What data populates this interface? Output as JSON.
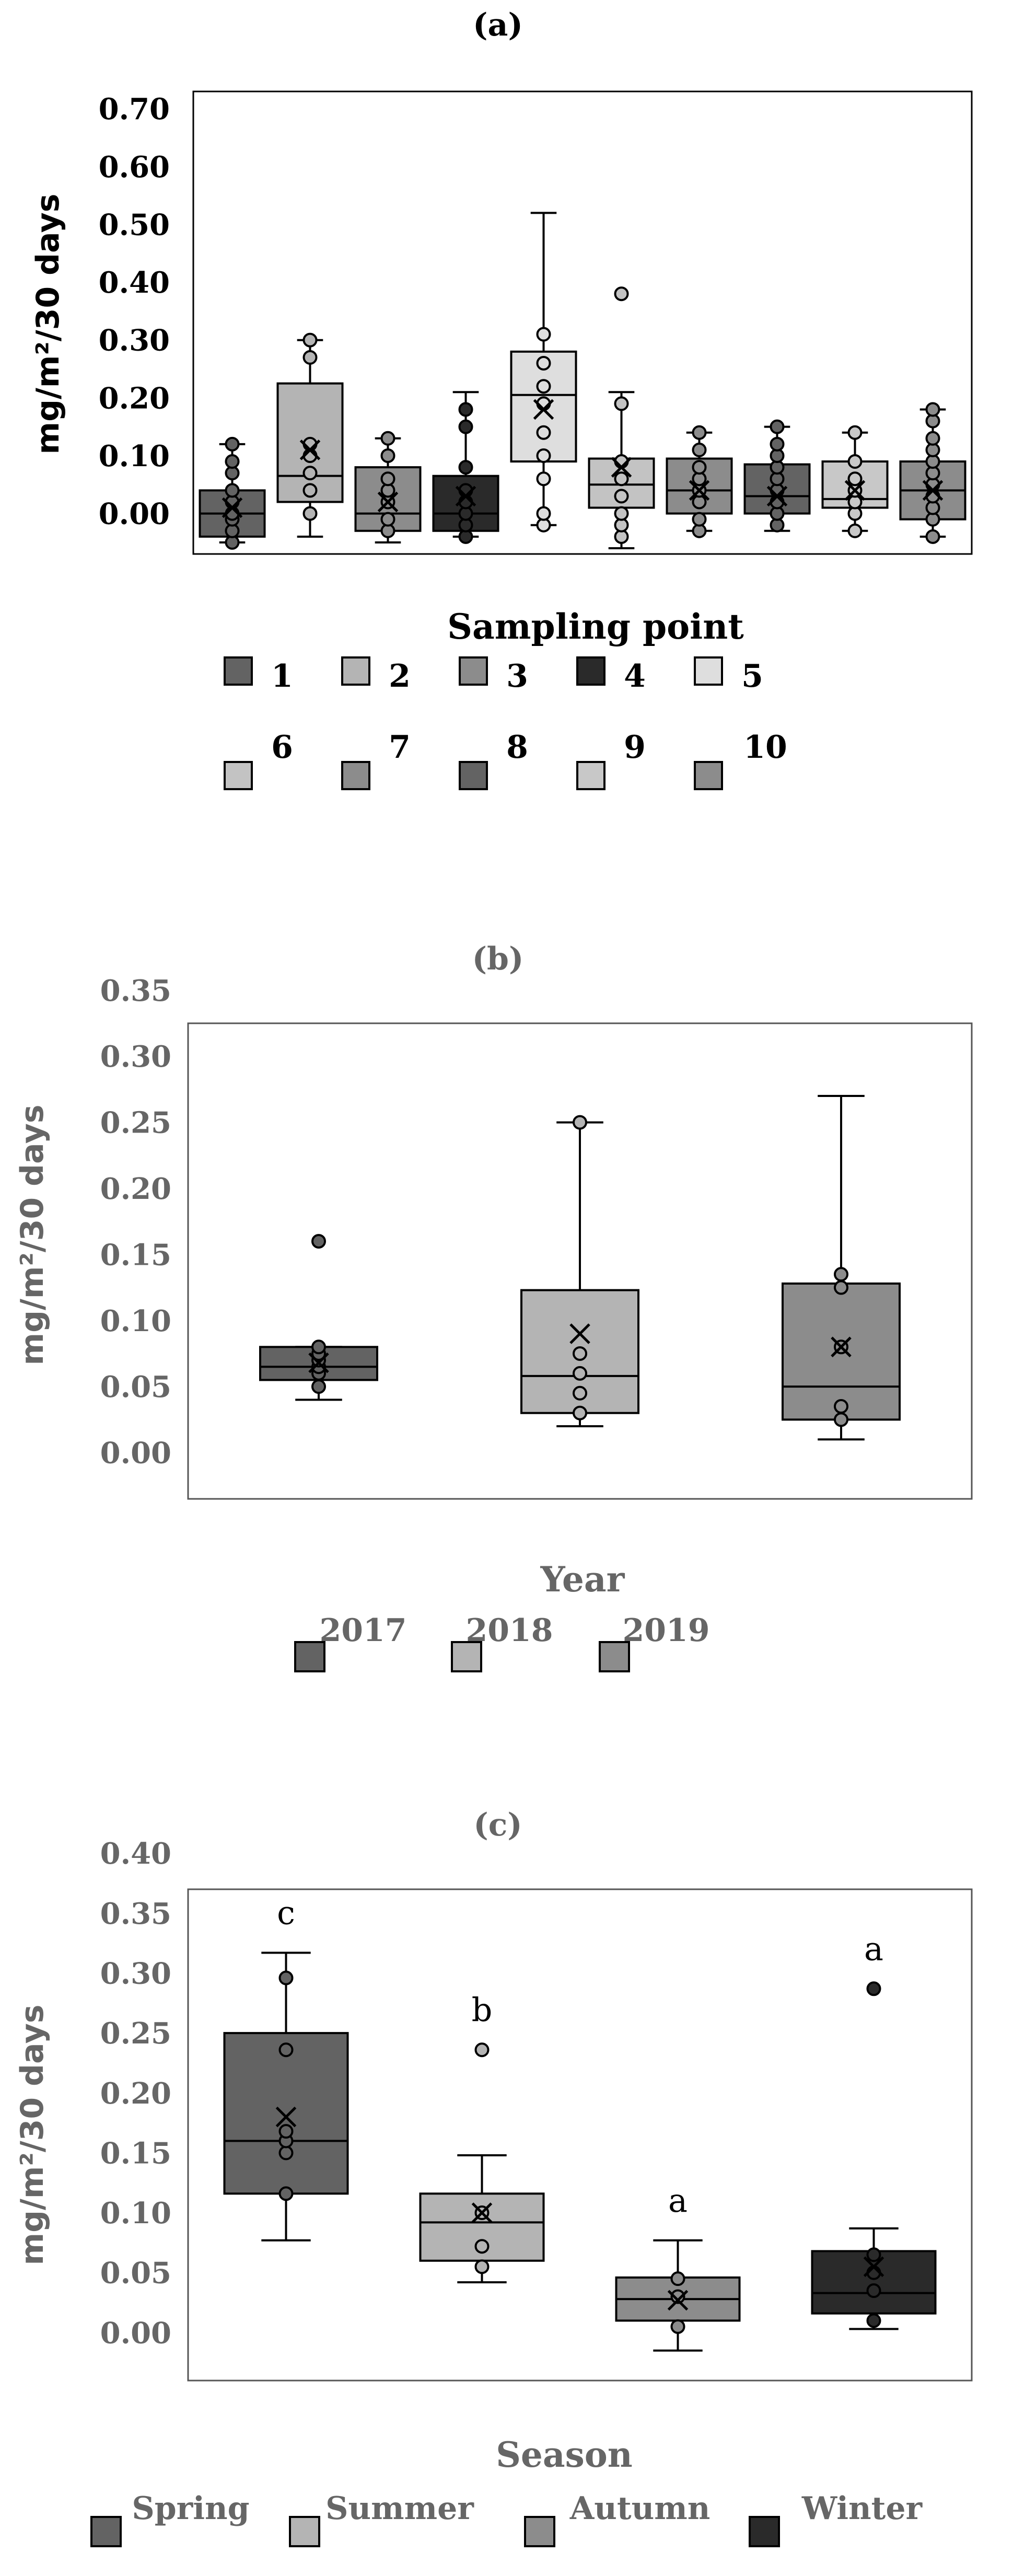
{
  "chart_data": [
    {
      "panel": "(a)",
      "type": "box",
      "ylabel": "mg/m²/30 days",
      "yticks": [
        "0.00",
        "0.10",
        "0.20",
        "0.30",
        "0.40",
        "0.50",
        "0.60",
        "0.70"
      ],
      "ylim": [
        -0.07,
        0.73
      ],
      "legend_title": "Sampling point",
      "colors": {
        "1": "#636363",
        "2": "#b4b4b4",
        "3": "#8c8c8c",
        "4": "#2a2a2a",
        "5": "#dedede",
        "6": "#c3c3c3",
        "7": "#8c8c8c",
        "8": "#636363",
        "9": "#c8c8c8",
        "10": "#8c8c8c"
      },
      "legend": [
        {
          "label": "1",
          "color": "#636363"
        },
        {
          "label": "2",
          "color": "#b4b4b4"
        },
        {
          "label": "3",
          "color": "#8c8c8c"
        },
        {
          "label": "4",
          "color": "#2a2a2a"
        },
        {
          "label": "5",
          "color": "#dedede"
        },
        {
          "label": "6",
          "color": "#c3c3c3"
        },
        {
          "label": "7",
          "color": "#8c8c8c"
        },
        {
          "label": "8",
          "color": "#636363"
        },
        {
          "label": "9",
          "color": "#c8c8c8"
        },
        {
          "label": "10",
          "color": "#8c8c8c"
        }
      ],
      "series": [
        {
          "name": "1",
          "min": -0.05,
          "q1": -0.04,
          "median": 0.0,
          "q3": 0.04,
          "max": 0.12,
          "mean": 0.01,
          "points": [
            -0.05,
            -0.03,
            -0.01,
            0.0,
            0.02,
            0.04,
            0.07,
            0.09,
            0.12
          ]
        },
        {
          "name": "2",
          "min": -0.04,
          "q1": 0.02,
          "median": 0.065,
          "q3": 0.225,
          "max": 0.3,
          "mean": 0.11,
          "points": [
            0.0,
            0.04,
            0.07,
            0.1,
            0.12,
            0.27,
            0.3
          ]
        },
        {
          "name": "3",
          "min": -0.05,
          "q1": -0.03,
          "median": 0.0,
          "q3": 0.08,
          "max": 0.13,
          "mean": 0.02,
          "points": [
            -0.03,
            -0.01,
            0.02,
            0.04,
            0.06,
            0.1,
            0.13
          ]
        },
        {
          "name": "4",
          "min": -0.04,
          "q1": -0.03,
          "median": 0.0,
          "q3": 0.065,
          "max": 0.21,
          "mean": 0.03,
          "points": [
            -0.04,
            -0.02,
            0.0,
            0.02,
            0.04,
            0.08,
            0.15,
            0.18
          ]
        },
        {
          "name": "5",
          "min": -0.02,
          "q1": 0.09,
          "median": 0.205,
          "q3": 0.28,
          "max": 0.52,
          "mean": 0.18,
          "points": [
            -0.02,
            0.0,
            0.06,
            0.1,
            0.14,
            0.19,
            0.22,
            0.26,
            0.31
          ]
        },
        {
          "name": "6",
          "min": -0.06,
          "q1": 0.01,
          "median": 0.05,
          "q3": 0.095,
          "max": 0.21,
          "mean": 0.08,
          "points": [
            -0.04,
            -0.02,
            0.0,
            0.03,
            0.06,
            0.09,
            0.19,
            0.38
          ]
        },
        {
          "name": "7",
          "min": -0.03,
          "q1": 0.0,
          "median": 0.04,
          "q3": 0.095,
          "max": 0.14,
          "mean": 0.04,
          "points": [
            -0.03,
            -0.01,
            0.02,
            0.04,
            0.06,
            0.08,
            0.11,
            0.14
          ]
        },
        {
          "name": "8",
          "min": -0.03,
          "q1": 0.0,
          "median": 0.03,
          "q3": 0.085,
          "max": 0.15,
          "mean": 0.03,
          "points": [
            -0.02,
            0.0,
            0.02,
            0.04,
            0.06,
            0.08,
            0.1,
            0.12,
            0.15
          ]
        },
        {
          "name": "9",
          "min": -0.03,
          "q1": 0.01,
          "median": 0.025,
          "q3": 0.09,
          "max": 0.14,
          "mean": 0.04,
          "points": [
            -0.03,
            0.0,
            0.02,
            0.04,
            0.06,
            0.09,
            0.14
          ]
        },
        {
          "name": "10",
          "min": -0.04,
          "q1": -0.01,
          "median": 0.04,
          "q3": 0.09,
          "max": 0.18,
          "mean": 0.04,
          "points": [
            -0.04,
            -0.01,
            0.01,
            0.03,
            0.05,
            0.07,
            0.09,
            0.11,
            0.13,
            0.16,
            0.18
          ]
        }
      ]
    },
    {
      "panel": "(b)",
      "type": "box",
      "ylabel": "mg/m²/30 days",
      "yticks": [
        "0.00",
        "0.05",
        "0.10",
        "0.15",
        "0.20",
        "0.25",
        "0.30",
        "0.35"
      ],
      "ylim": [
        -0.035,
        0.325
      ],
      "legend_title": "Year",
      "legend": [
        {
          "label": "2017",
          "color": "#636363"
        },
        {
          "label": "2018",
          "color": "#b4b4b4"
        },
        {
          "label": "2019",
          "color": "#8c8c8c"
        }
      ],
      "series": [
        {
          "name": "2017",
          "min": 0.04,
          "q1": 0.055,
          "median": 0.065,
          "q3": 0.08,
          "max": 0.08,
          "mean": 0.068,
          "points": [
            0.05,
            0.06,
            0.065,
            0.07,
            0.075,
            0.08,
            0.16
          ]
        },
        {
          "name": "2018",
          "min": 0.02,
          "q1": 0.03,
          "median": 0.058,
          "q3": 0.123,
          "max": 0.25,
          "mean": 0.09,
          "points": [
            0.03,
            0.045,
            0.06,
            0.075,
            0.25
          ]
        },
        {
          "name": "2019",
          "min": 0.01,
          "q1": 0.025,
          "median": 0.05,
          "q3": 0.128,
          "max": 0.27,
          "mean": 0.08,
          "points": [
            0.025,
            0.035,
            0.08,
            0.125,
            0.135
          ]
        }
      ]
    },
    {
      "panel": "(c)",
      "type": "box",
      "ylabel": "mg/m²/30 days",
      "yticks": [
        "0.00",
        "0.05",
        "0.10",
        "0.15",
        "0.20",
        "0.25",
        "0.30",
        "0.35",
        "0.40"
      ],
      "ylim": [
        -0.04,
        0.37
      ],
      "legend_title": "Season",
      "legend": [
        {
          "label": "Spring",
          "color": "#636363"
        },
        {
          "label": "Summer",
          "color": "#b4b4b4"
        },
        {
          "label": "Autumn",
          "color": "#8c8c8c"
        },
        {
          "label": "Winter",
          "color": "#2a2a2a"
        }
      ],
      "series": [
        {
          "name": "Spring",
          "min": 0.077,
          "q1": 0.116,
          "median": 0.16,
          "q3": 0.25,
          "max": 0.317,
          "mean": 0.18,
          "sig": "c",
          "points": [
            0.116,
            0.15,
            0.16,
            0.168,
            0.236,
            0.296
          ]
        },
        {
          "name": "Summer",
          "min": 0.042,
          "q1": 0.06,
          "median": 0.092,
          "q3": 0.116,
          "max": 0.148,
          "mean": 0.1,
          "sig": "b",
          "points": [
            0.055,
            0.072,
            0.1,
            0.236
          ]
        },
        {
          "name": "Autumn",
          "min": -0.015,
          "q1": 0.01,
          "median": 0.028,
          "q3": 0.046,
          "max": 0.077,
          "mean": 0.027,
          "sig": "a",
          "points": [
            0.005,
            0.03,
            0.045
          ]
        },
        {
          "name": "Winter",
          "min": 0.003,
          "q1": 0.016,
          "median": 0.033,
          "q3": 0.068,
          "max": 0.087,
          "mean": 0.055,
          "sig": "a",
          "points": [
            0.01,
            0.035,
            0.05,
            0.065,
            0.287
          ]
        }
      ]
    }
  ]
}
